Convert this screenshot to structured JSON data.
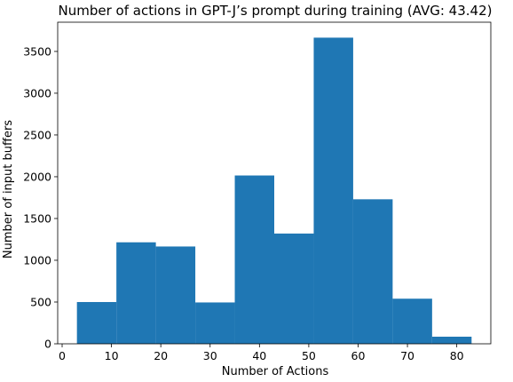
{
  "chart_data": {
    "type": "bar",
    "title": "Number of actions in GPT-J’s prompt during training (AVG: 43.42)",
    "xlabel": "Number of Actions",
    "ylabel": "Number of input buffers",
    "xlim": [
      -0.9,
      86.9
    ],
    "ylim": [
      0,
      3850
    ],
    "xticks": [
      0,
      10,
      20,
      30,
      40,
      50,
      60,
      70,
      80
    ],
    "yticks": [
      0,
      500,
      1000,
      1500,
      2000,
      2500,
      3000,
      3500
    ],
    "bin_edges": [
      3,
      11,
      19,
      27,
      35,
      43,
      51,
      59,
      67,
      75,
      83
    ],
    "values": [
      500,
      1215,
      1165,
      495,
      2015,
      1320,
      3665,
      1730,
      540,
      85
    ],
    "bar_color": "#1f77b4",
    "grid": false,
    "legend": "none"
  }
}
